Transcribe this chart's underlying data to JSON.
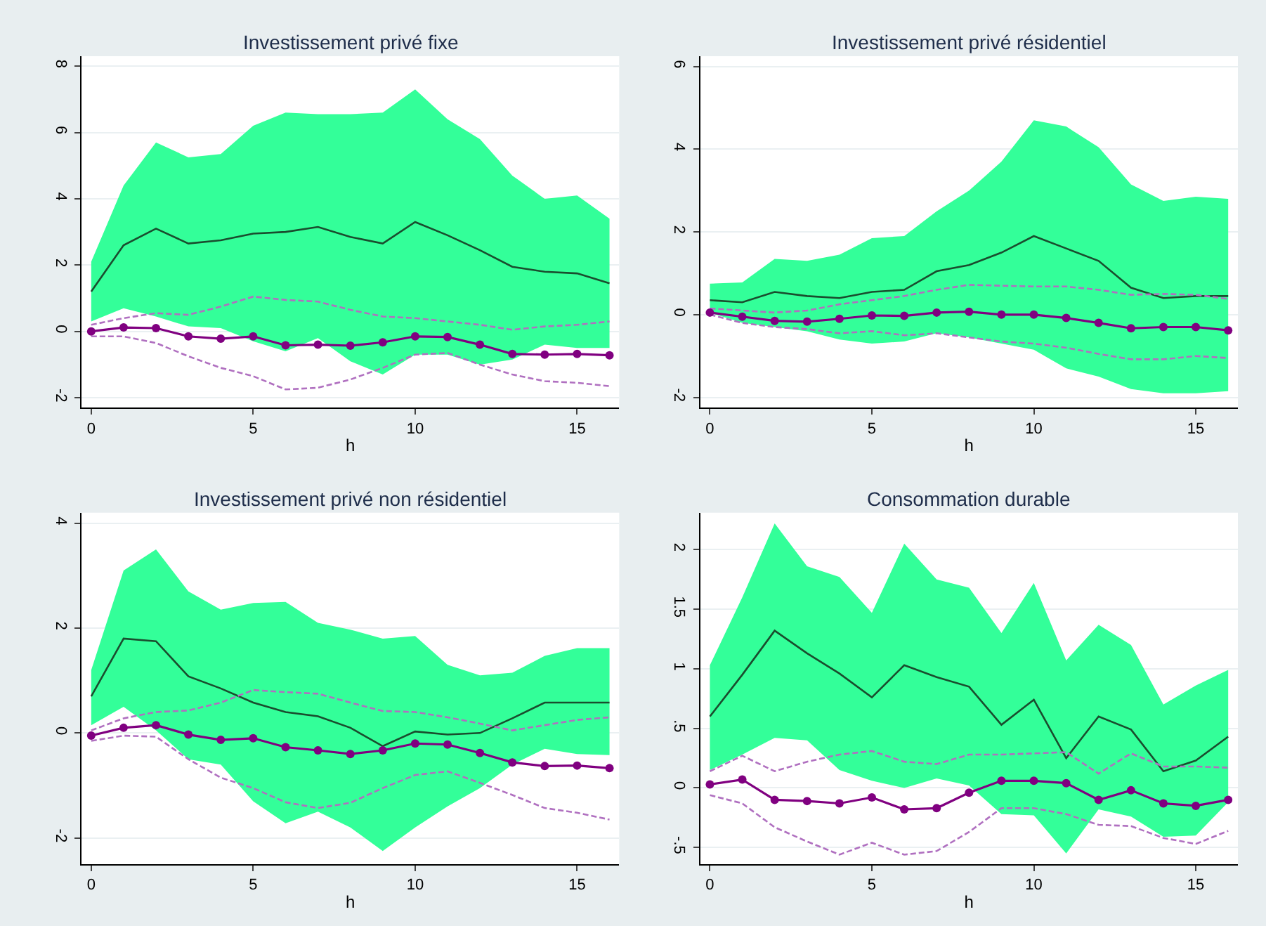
{
  "chart_data": [
    {
      "type": "line",
      "title": "Investissement privé fixe",
      "xlabel": "h",
      "x": [
        0,
        1,
        2,
        3,
        4,
        5,
        6,
        7,
        8,
        9,
        10,
        11,
        12,
        13,
        14,
        15,
        16
      ],
      "xlim": [
        -0.3,
        16.3
      ],
      "xticks": [
        0,
        5,
        10,
        15
      ],
      "ylim": [
        -2.3,
        8.3
      ],
      "yticks": [
        -2,
        0,
        2,
        4,
        6,
        8
      ],
      "grid": "y",
      "series": [
        {
          "color": "#1a4d2e",
          "line_style": "solid",
          "marker": "none",
          "values": [
            1.2,
            2.6,
            3.1,
            2.65,
            2.75,
            2.95,
            3.0,
            3.15,
            2.85,
            2.65,
            3.3,
            2.9,
            2.45,
            1.95,
            1.8,
            1.75,
            1.45
          ],
          "lower": [
            0.3,
            0.7,
            0.45,
            0.15,
            0.1,
            -0.3,
            -0.6,
            -0.2,
            -0.9,
            -1.3,
            -0.7,
            -0.7,
            -1.0,
            -0.85,
            -0.4,
            -0.5,
            -0.5
          ],
          "upper": [
            2.1,
            4.4,
            5.7,
            5.25,
            5.35,
            6.2,
            6.6,
            6.55,
            6.55,
            6.6,
            7.3,
            6.4,
            5.8,
            4.7,
            4.0,
            4.1,
            3.4
          ]
        },
        {
          "color": "#b070c0",
          "line_style": "dashed",
          "marker": "none",
          "values": [
            0.2,
            0.4,
            0.55,
            0.5,
            0.75,
            1.05,
            0.95,
            0.9,
            0.65,
            0.45,
            0.4,
            0.3,
            0.2,
            0.05,
            0.15,
            0.2,
            0.3
          ]
        },
        {
          "color": "#b070c0",
          "line_style": "dashed",
          "marker": "none",
          "values": [
            -0.15,
            -0.15,
            -0.35,
            -0.75,
            -1.1,
            -1.35,
            -1.75,
            -1.7,
            -1.45,
            -1.1,
            -0.7,
            -0.65,
            -1.0,
            -1.3,
            -1.5,
            -1.55,
            -1.65
          ]
        },
        {
          "color": "#800080",
          "line_style": "solid",
          "marker": "circle",
          "values": [
            0,
            0.12,
            0.1,
            -0.15,
            -0.22,
            -0.15,
            -0.42,
            -0.4,
            -0.43,
            -0.33,
            -0.15,
            -0.17,
            -0.4,
            -0.68,
            -0.7,
            -0.68,
            -0.72
          ]
        }
      ]
    },
    {
      "type": "line",
      "title": "Investissement privé résidentiel",
      "xlabel": "h",
      "x": [
        0,
        1,
        2,
        3,
        4,
        5,
        6,
        7,
        8,
        9,
        10,
        11,
        12,
        13,
        14,
        15,
        16
      ],
      "xlim": [
        -0.3,
        16.3
      ],
      "xticks": [
        0,
        5,
        10,
        15
      ],
      "ylim": [
        -2.25,
        6.25
      ],
      "yticks": [
        -2,
        0,
        2,
        4,
        6
      ],
      "grid": "y",
      "series": [
        {
          "color": "#1a4d2e",
          "line_style": "solid",
          "marker": "none",
          "values": [
            0.35,
            0.3,
            0.55,
            0.45,
            0.4,
            0.55,
            0.6,
            1.05,
            1.2,
            1.5,
            1.9,
            1.6,
            1.3,
            0.65,
            0.4,
            0.45,
            0.45
          ],
          "lower": [
            0.05,
            -0.2,
            -0.3,
            -0.4,
            -0.6,
            -0.7,
            -0.65,
            -0.45,
            -0.55,
            -0.7,
            -0.85,
            -1.3,
            -1.5,
            -1.8,
            -1.9,
            -1.9,
            -1.85
          ],
          "upper": [
            0.75,
            0.78,
            1.35,
            1.3,
            1.45,
            1.85,
            1.9,
            2.5,
            3.0,
            3.7,
            4.7,
            4.55,
            4.05,
            3.15,
            2.75,
            2.85,
            2.8
          ]
        },
        {
          "color": "#b070c0",
          "line_style": "dashed",
          "marker": "none",
          "values": [
            0.15,
            0.1,
            0.05,
            0.1,
            0.25,
            0.35,
            0.45,
            0.6,
            0.72,
            0.7,
            0.68,
            0.68,
            0.6,
            0.48,
            0.5,
            0.48,
            0.38
          ]
        },
        {
          "color": "#b070c0",
          "line_style": "dashed",
          "marker": "none",
          "values": [
            0.0,
            -0.2,
            -0.3,
            -0.35,
            -0.45,
            -0.4,
            -0.5,
            -0.45,
            -0.55,
            -0.65,
            -0.7,
            -0.8,
            -0.95,
            -1.08,
            -1.08,
            -1.0,
            -1.05
          ]
        },
        {
          "color": "#800080",
          "line_style": "solid",
          "marker": "circle",
          "values": [
            0.05,
            -0.05,
            -0.15,
            -0.17,
            -0.1,
            -0.02,
            -0.03,
            0.05,
            0.07,
            0.0,
            0.0,
            -0.08,
            -0.2,
            -0.33,
            -0.3,
            -0.3,
            -0.38
          ]
        }
      ]
    },
    {
      "type": "line",
      "title": "Investissement privé non résidentiel",
      "xlabel": "h",
      "x": [
        0,
        1,
        2,
        3,
        4,
        5,
        6,
        7,
        8,
        9,
        10,
        11,
        12,
        13,
        14,
        15,
        16
      ],
      "xlim": [
        -0.3,
        16.3
      ],
      "xticks": [
        0,
        5,
        10,
        15
      ],
      "ylim": [
        -2.5,
        4.2
      ],
      "yticks": [
        -2,
        0,
        2,
        4
      ],
      "grid": "y",
      "series": [
        {
          "color": "#1a4d2e",
          "line_style": "solid",
          "marker": "none",
          "values": [
            0.7,
            1.8,
            1.75,
            1.08,
            0.85,
            0.58,
            0.4,
            0.32,
            0.1,
            -0.25,
            0.03,
            -0.03,
            0.0,
            0.28,
            0.58,
            0.58,
            0.58
          ],
          "lower": [
            0.15,
            0.5,
            0.05,
            -0.5,
            -0.6,
            -1.3,
            -1.72,
            -1.5,
            -1.8,
            -2.25,
            -1.8,
            -1.4,
            -1.05,
            -0.6,
            -0.3,
            -0.4,
            -0.42
          ],
          "upper": [
            1.2,
            3.1,
            3.5,
            2.7,
            2.35,
            2.48,
            2.5,
            2.1,
            1.97,
            1.8,
            1.85,
            1.3,
            1.1,
            1.15,
            1.47,
            1.62,
            1.62
          ]
        },
        {
          "color": "#b070c0",
          "line_style": "dashed",
          "marker": "none",
          "values": [
            0.05,
            0.28,
            0.4,
            0.43,
            0.58,
            0.82,
            0.78,
            0.75,
            0.58,
            0.42,
            0.4,
            0.3,
            0.18,
            0.05,
            0.15,
            0.25,
            0.3
          ]
        },
        {
          "color": "#b070c0",
          "line_style": "dashed",
          "marker": "none",
          "values": [
            -0.15,
            -0.05,
            -0.07,
            -0.5,
            -0.85,
            -1.05,
            -1.32,
            -1.43,
            -1.33,
            -1.05,
            -0.8,
            -0.73,
            -0.95,
            -1.18,
            -1.43,
            -1.52,
            -1.65
          ]
        },
        {
          "color": "#800080",
          "line_style": "solid",
          "marker": "circle",
          "values": [
            -0.05,
            0.1,
            0.15,
            -0.03,
            -0.13,
            -0.1,
            -0.27,
            -0.33,
            -0.4,
            -0.33,
            -0.2,
            -0.22,
            -0.38,
            -0.56,
            -0.63,
            -0.62,
            -0.67
          ]
        }
      ]
    },
    {
      "type": "line",
      "title": "Consommation durable",
      "xlabel": "h",
      "x": [
        0,
        1,
        2,
        3,
        4,
        5,
        6,
        7,
        8,
        9,
        10,
        11,
        12,
        13,
        14,
        15,
        16
      ],
      "xlim": [
        -0.3,
        16.3
      ],
      "xticks": [
        0,
        5,
        10,
        15
      ],
      "ylim": [
        -0.64,
        2.31
      ],
      "yticks": [
        {
          "value": -0.5,
          "label": "-.5"
        },
        0,
        {
          "value": 0.5,
          "label": ".5"
        },
        1,
        1.5,
        2
      ],
      "grid": "y",
      "series": [
        {
          "color": "#1a4d2e",
          "line_style": "solid",
          "marker": "none",
          "values": [
            0.6,
            0.95,
            1.32,
            1.13,
            0.96,
            0.76,
            1.03,
            0.93,
            0.85,
            0.53,
            0.74,
            0.25,
            0.6,
            0.49,
            0.14,
            0.23,
            0.43
          ],
          "lower": [
            0.15,
            0.28,
            0.42,
            0.4,
            0.15,
            0.06,
            0.0,
            0.08,
            0.02,
            -0.22,
            -0.23,
            -0.55,
            -0.18,
            -0.24,
            -0.41,
            -0.4,
            -0.12
          ],
          "upper": [
            1.03,
            1.6,
            2.22,
            1.86,
            1.77,
            1.47,
            2.05,
            1.75,
            1.68,
            1.3,
            1.72,
            1.07,
            1.37,
            1.2,
            0.7,
            0.86,
            0.99
          ]
        },
        {
          "color": "#b070c0",
          "line_style": "dashed",
          "marker": "none",
          "values": [
            0.14,
            0.27,
            0.14,
            0.22,
            0.28,
            0.31,
            0.22,
            0.2,
            0.28,
            0.28,
            0.29,
            0.3,
            0.12,
            0.29,
            0.18,
            0.18,
            0.17
          ]
        },
        {
          "color": "#b070c0",
          "line_style": "dashed",
          "marker": "none",
          "values": [
            -0.06,
            -0.13,
            -0.33,
            -0.45,
            -0.56,
            -0.46,
            -0.56,
            -0.53,
            -0.37,
            -0.17,
            -0.17,
            -0.22,
            -0.31,
            -0.32,
            -0.42,
            -0.47,
            -0.36
          ]
        },
        {
          "color": "#800080",
          "line_style": "solid",
          "marker": "circle",
          "values": [
            0.03,
            0.07,
            -0.1,
            -0.11,
            -0.13,
            -0.08,
            -0.18,
            -0.17,
            -0.04,
            0.06,
            0.06,
            0.04,
            -0.1,
            -0.02,
            -0.13,
            -0.15,
            -0.1
          ]
        }
      ]
    }
  ]
}
